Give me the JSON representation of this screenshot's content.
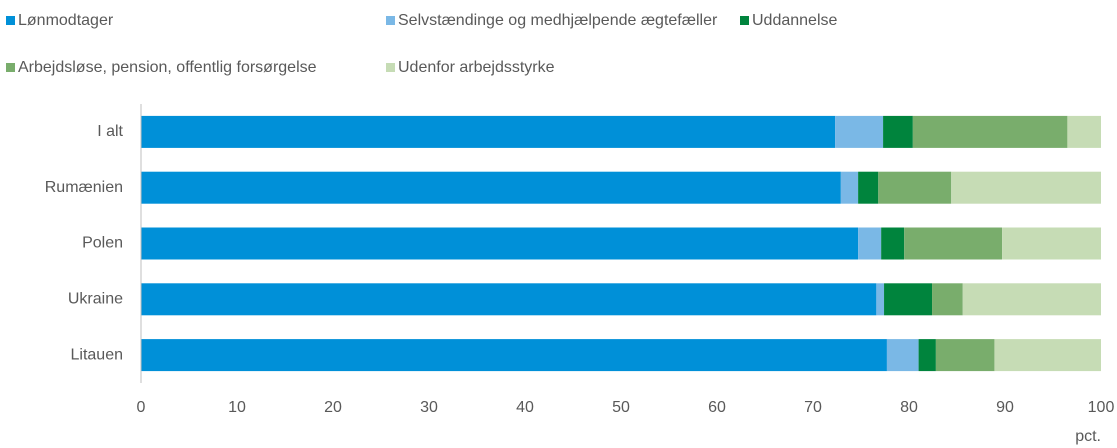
{
  "chart_data": {
    "type": "stacked_barh",
    "categories": [
      "I alt",
      "Rumænien",
      "Polen",
      "Ukraine",
      "Litauen"
    ],
    "series": [
      {
        "name": "Lønmodtager",
        "color": "#0090d8",
        "values": [
          72.3,
          72.9,
          74.7,
          76.6,
          77.7
        ]
      },
      {
        "name": "Selvstændinge og medhjælpende ægtefæller",
        "color": "#7ab8e6",
        "values": [
          5.0,
          1.8,
          2.4,
          0.8,
          3.3
        ]
      },
      {
        "name": "Uddannelse",
        "color": "#00843d",
        "values": [
          3.1,
          2.1,
          2.4,
          5.0,
          1.8
        ]
      },
      {
        "name": "Arbejdsløse, pension, offentlig forsørgelse",
        "color": "#79ad6c",
        "values": [
          16.1,
          7.6,
          10.2,
          3.2,
          6.1
        ]
      },
      {
        "name": "Udenfor arbejdsstyrke",
        "color": "#c6dcb5",
        "values": [
          3.5,
          15.6,
          10.3,
          14.4,
          11.1
        ]
      }
    ],
    "xlabel": "pct.",
    "xlim": [
      0,
      100
    ],
    "xticks": [
      0,
      10,
      20,
      30,
      40,
      50,
      60,
      70,
      80,
      90,
      100
    ],
    "legend": "top"
  }
}
